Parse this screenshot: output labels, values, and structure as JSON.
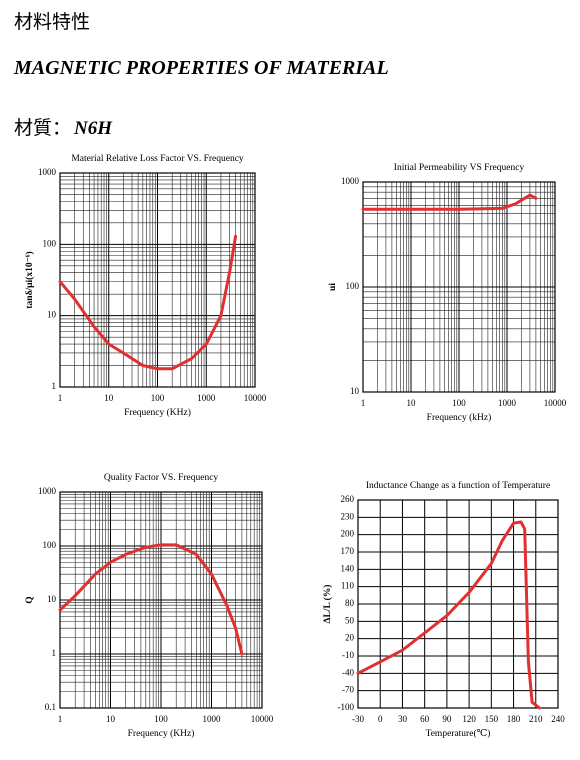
{
  "header": {
    "title_cn": "材料特性",
    "title_en": "MAGNETIC PROPERTIES OF MATERIAL",
    "material_label": "材質：",
    "material": "N6H"
  },
  "chart_data": [
    {
      "type": "line",
      "title": "Material Relative Loss Factor VS. Frequency",
      "x_label": "Frequency (KHz)",
      "y_label": "tanδ/μi(x10⁻⁶)",
      "xscale": "log",
      "yscale": "log",
      "xlim": [
        1,
        10000
      ],
      "ylim": [
        1,
        1000
      ],
      "xticks": [
        1,
        10,
        100,
        1000,
        10000
      ],
      "yticks": [
        1,
        10,
        100,
        1000
      ],
      "grid": true,
      "color": "#e03030",
      "x": [
        1,
        2,
        5,
        10,
        20,
        50,
        100,
        200,
        500,
        1000,
        2000,
        3000,
        4000
      ],
      "values": [
        30,
        17,
        7,
        4,
        3,
        2,
        1.8,
        1.8,
        2.5,
        4,
        10,
        40,
        130
      ]
    },
    {
      "type": "line",
      "title": "Initial Permeability VS Frequency",
      "x_label": "Frequency (kHz)",
      "y_label": "ui",
      "xscale": "log",
      "yscale": "log",
      "xlim": [
        1,
        10000
      ],
      "ylim": [
        10,
        1000
      ],
      "xticks": [
        1,
        10,
        100,
        1000,
        10000
      ],
      "yticks": [
        10,
        100,
        1000
      ],
      "grid": true,
      "color": "#e03030",
      "x": [
        1,
        10,
        100,
        800,
        1500,
        3000,
        4000
      ],
      "values": [
        550,
        550,
        550,
        560,
        620,
        750,
        700
      ]
    },
    {
      "type": "line",
      "title": "Quality Factor  VS. Frequency",
      "x_label": "Frequency (KHz)",
      "y_label": "Q",
      "xscale": "log",
      "yscale": "log",
      "xlim": [
        1,
        10000
      ],
      "ylim": [
        0.1,
        1000
      ],
      "xticks": [
        1,
        10,
        100,
        1000,
        10000
      ],
      "yticks": [
        0.1,
        1,
        10,
        100,
        1000
      ],
      "grid": true,
      "color": "#e03030",
      "x": [
        1,
        2,
        5,
        10,
        20,
        50,
        100,
        200,
        500,
        1000,
        2000,
        3000,
        4000
      ],
      "values": [
        6.5,
        12,
        30,
        50,
        70,
        95,
        105,
        105,
        70,
        30,
        8,
        3,
        1
      ]
    },
    {
      "type": "line",
      "title": "Inductance Change as a function of Temperature",
      "x_label": "Temperature(℃)",
      "y_label": "ΔL/L (%)",
      "xscale": "linear",
      "yscale": "linear",
      "xlim": [
        -30,
        240
      ],
      "ylim": [
        -100,
        260
      ],
      "xticks": [
        -30,
        0,
        30,
        60,
        90,
        120,
        150,
        180,
        210,
        240
      ],
      "yticks": [
        -100,
        -70,
        -40,
        -10,
        20,
        50,
        80,
        110,
        140,
        170,
        200,
        230,
        260
      ],
      "grid": true,
      "color": "#e03030",
      "x": [
        -30,
        0,
        30,
        60,
        90,
        120,
        150,
        165,
        180,
        190,
        195,
        200,
        205,
        215
      ],
      "values": [
        -40,
        -20,
        0,
        30,
        60,
        100,
        150,
        190,
        220,
        222,
        210,
        -20,
        -90,
        -100
      ]
    }
  ]
}
